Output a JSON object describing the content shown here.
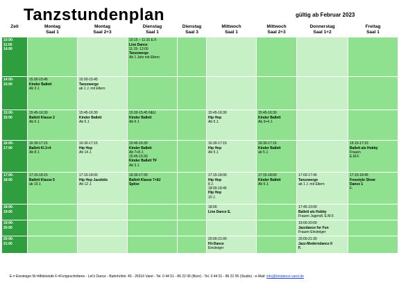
{
  "title": "Tanzstundenplan",
  "subtitle": "gültig ab Februar 2023",
  "headers": [
    {
      "l1": "Zeit",
      "l2": ""
    },
    {
      "l1": "Montag",
      "l2": "Saal 1"
    },
    {
      "l1": "Montag",
      "l2": "Saal 2+3"
    },
    {
      "l1": "Dienstag",
      "l2": "Saal 1"
    },
    {
      "l1": "Dienstag",
      "l2": "Saal 3"
    },
    {
      "l1": "Mittwoch",
      "l2": "Saal 1"
    },
    {
      "l1": "Mittwoch",
      "l2": "Saal 2+3"
    },
    {
      "l1": "Donnerstag",
      "l2": "Saal 1+2"
    },
    {
      "l1": "Freitag",
      "l2": "Saal 1"
    }
  ],
  "rows": [
    {
      "time": [
        "10:00-",
        "11:00",
        "14:00"
      ],
      "cells": [
        [],
        [],
        [
          {
            "t": "10:15 – 11:15  E.F."
          },
          {
            "t": "Line Dance",
            "b": true
          },
          {
            "t": " "
          },
          {
            "t": "11:15- 12:00"
          },
          {
            "t": "Tanzzwerge",
            "b": true
          },
          {
            "t": "Ab 1 Jahr mit Eltern"
          }
        ],
        [],
        [],
        [],
        [],
        []
      ]
    },
    {
      "time": [
        "14:00-",
        "15:00"
      ],
      "cells": [
        [
          {
            "t": "15.00-15:45"
          },
          {
            "t": "Kinder Ballett",
            "b": true
          },
          {
            "t": "Ab 3 J."
          }
        ],
        [
          {
            "t": "15.00-15:45"
          },
          {
            "t": "Tanzzwerge",
            "b": true
          },
          {
            "t": "ab 1 J. mit Eltern"
          }
        ],
        [],
        [],
        [],
        [],
        [],
        []
      ]
    },
    {
      "time": [
        "15:00-",
        "16:00"
      ],
      "cells": [
        [
          {
            "t": "15:45-16:30"
          },
          {
            "t": "Ballett Klasse 2",
            "b": true
          },
          {
            "t": "Ab 6 J."
          }
        ],
        [
          {
            "t": "15:45-16:30"
          },
          {
            "t": "Kinder Ballett",
            "b": true
          },
          {
            "t": "Ab 5 J."
          }
        ],
        [
          {
            "t": "15.00-15:45 NEU"
          },
          {
            "t": "Kinder Ballett",
            "b": true
          },
          {
            "t": "Ab 6 J."
          }
        ],
        [],
        [
          {
            "t": "15:45-16:30"
          },
          {
            "t": "Hip Hop",
            "b": true
          },
          {
            "t": "Ab 5 J."
          }
        ],
        [
          {
            "t": "15:45-16:30"
          },
          {
            "t": "Kinder Ballett",
            "b": true
          },
          {
            "t": "Ab 3+4 J."
          }
        ],
        [],
        []
      ]
    },
    {
      "time": [
        "16:00-",
        "17:00"
      ],
      "cells": [
        [
          {
            "t": "16:30-17:15"
          },
          {
            "t": "Ballett Kl.3+4",
            "b": true
          },
          {
            "t": "Ab 8 J."
          }
        ],
        [
          {
            "t": "16:30-17:15"
          },
          {
            "t": "Hip Hop",
            "b": true
          },
          {
            "t": "Ab 14 J."
          }
        ],
        [
          {
            "t": "15:45-16:30"
          },
          {
            "t": "Kinder Ballett",
            "b": true
          },
          {
            "t": "Ab 7+8 J."
          },
          {
            "t": "15:45-16:30"
          },
          {
            "t": "Kinder Ballett TF",
            "b": true
          },
          {
            "t": "Ab 3 J."
          }
        ],
        [],
        [
          {
            "t": "16:30-17:15"
          },
          {
            "t": "Hip Hop",
            "b": true
          },
          {
            "t": "Ab 5 J."
          }
        ],
        [
          {
            "t": "16:30-17:15"
          },
          {
            "t": "Kinder Ballett",
            "b": true
          },
          {
            "t": "ab 5 J."
          }
        ],
        [],
        [
          {
            "t": "16:15-17:15"
          },
          {
            "t": "Ballett als Hobby",
            "b": true
          },
          {
            "t": "Frauen"
          },
          {
            "t": "E.M.F."
          }
        ]
      ]
    },
    {
      "time": [
        "17:00-",
        "18:00"
      ],
      "cells": [
        [
          {
            "t": "17:15-18:15"
          },
          {
            "t": "Ballett Klasse 5",
            "b": true
          },
          {
            "t": "ab 10 J."
          }
        ],
        [
          {
            "t": "17:15-18:00"
          },
          {
            "t": "Hip Hop Jazzkids",
            "b": true
          },
          {
            "t": "Ab 12 J."
          }
        ],
        [
          {
            "t": "16:30-17:30"
          },
          {
            "t": "Ballett Klasse 7+8J",
            "b": true
          },
          {
            "t": "Spitze",
            "b": true
          }
        ],
        [],
        [
          {
            "t": "17:15-18:00"
          },
          {
            "t": "Hip Hop",
            "b": true
          },
          {
            "t": "8 J."
          },
          {
            "t": "18:00-18:45"
          },
          {
            "t": "Hip Hop",
            "b": true
          },
          {
            "t": "10 J."
          }
        ],
        [
          {
            "t": "17:15-18:00"
          },
          {
            "t": "Kinder Ballett",
            "b": true
          },
          {
            "t": "Ab 5 J."
          }
        ],
        [
          {
            "t": "17:00-17:45"
          },
          {
            "t": "Tanzzwerge",
            "b": true
          },
          {
            "t": "ab 1 J. mit Eltern"
          }
        ],
        [
          {
            "t": "17:15-18:45"
          },
          {
            "t": "Freestyle Show",
            "b": true
          },
          {
            "t": "Dance 1",
            "b": true
          },
          {
            "t": "F."
          }
        ]
      ]
    },
    {
      "time": [
        "18:00-",
        "19:00"
      ],
      "cells": [
        [],
        [],
        [],
        [],
        [
          {
            "t": "18:00"
          },
          {
            "t": "Line Dance E.",
            "b": true
          }
        ],
        [],
        [
          {
            "t": "17:45-19:00"
          },
          {
            "t": "Ballett als Hobby",
            "b": true
          },
          {
            "t": "Frauen Jugendl. E.M.F."
          }
        ],
        []
      ]
    },
    {
      "time": [
        "19:00-",
        "20:00"
      ],
      "cells": [
        [],
        [],
        [],
        [],
        [],
        [],
        [
          {
            "t": "19:00-20:00"
          },
          {
            "t": "Jazzdance for Fun",
            "b": true
          },
          {
            "t": "Frauen Einsteiger"
          }
        ],
        []
      ]
    },
    {
      "time": [
        "20:00-",
        "21:00"
      ],
      "cells": [
        [],
        [],
        [],
        [],
        [
          {
            "t": "20:00-21:00"
          },
          {
            "t": "Fit-Dance",
            "b": true
          },
          {
            "t": "Einsteiger"
          }
        ],
        [],
        [
          {
            "t": "20:00-21:30"
          },
          {
            "t": "Jazz-Moderndance II",
            "b": true
          },
          {
            "t": "F.",
            "b": true
          }
        ],
        []
      ]
    }
  ],
  "footer": {
    "text": "E.= Einsteiger   M.=Mittelstufe   F.=Fortgeschrittene - Let's Dance - Bahnhofstr. 45 - 26316 Varel - Tel. 0 44 51 - 86 22 06 (Büro)  - Tel. 0 44 51 - 86 22 05 (Studio)  - e-Mail: ",
    "email": "info@letsdance-varel.de"
  },
  "colors": {
    "time_column": "#2e9e3e",
    "cell_light": "#8fe08f",
    "cell_pale": "#c7f0c7",
    "link": "#1a3fd1"
  }
}
